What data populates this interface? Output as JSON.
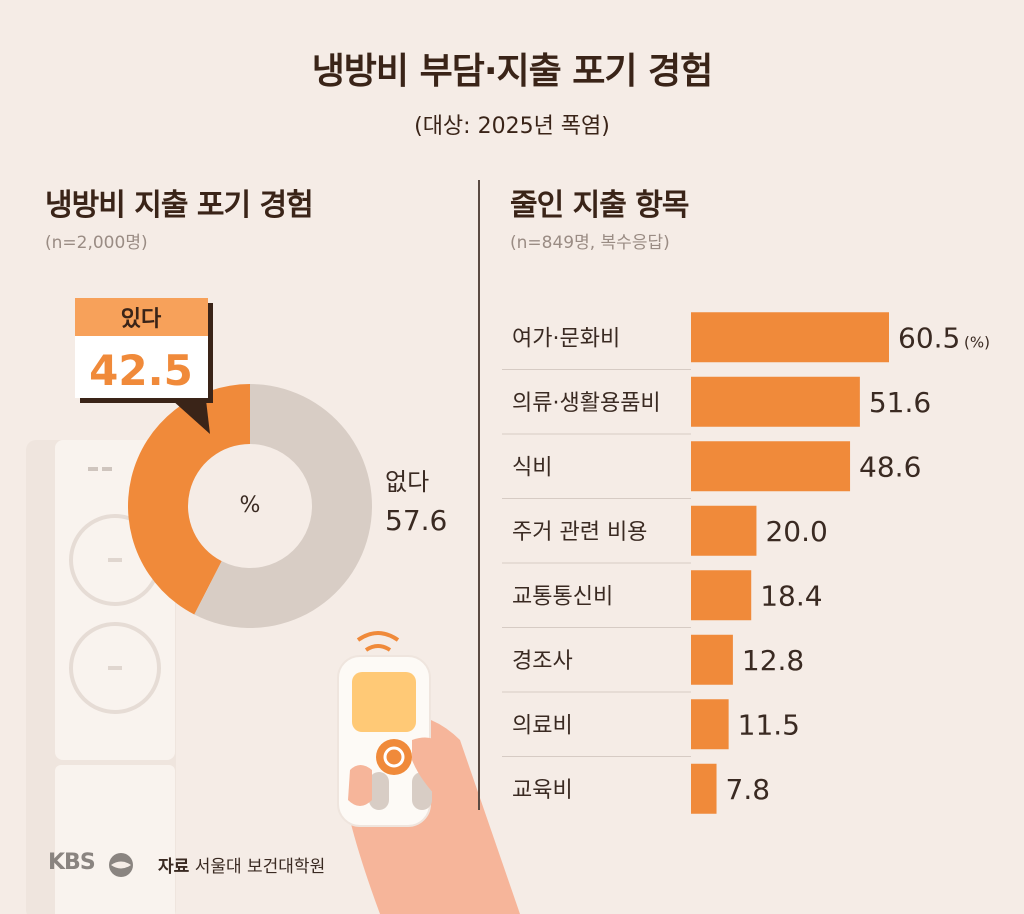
{
  "title": "냉방비 부담·지출 포기 경험",
  "subtitle": "(대상: 2025년 폭염)",
  "left": {
    "title": "냉방비 지출 포기 경험",
    "note": "(n=2,000명)"
  },
  "right": {
    "title": "줄인 지출 항목",
    "note": "(n=849명, 복수응답)"
  },
  "footer": {
    "logo": "KBS",
    "source_label": "자료",
    "source_name": "서울대 보건대학원"
  },
  "colors": {
    "accent": "#f08a3a",
    "grey": "#d8cdc5",
    "bg": "#f5ece6",
    "callout_head": "#f7a15a"
  },
  "chart_data": [
    {
      "type": "pie",
      "unit": "%",
      "slices": [
        {
          "label": "있다",
          "value": 42.5,
          "display": "42.5"
        },
        {
          "label": "없다",
          "value": 57.6,
          "display": "57.6"
        }
      ]
    },
    {
      "type": "bar",
      "orientation": "horizontal",
      "unit_label": "(%)",
      "categories": [
        "여가·문화비",
        "의류·생활용품비",
        "식비",
        "주거 관련 비용",
        "교통통신비",
        "경조사",
        "의료비",
        "교육비"
      ],
      "values": [
        60.5,
        51.6,
        48.6,
        20.0,
        18.4,
        12.8,
        11.5,
        7.8
      ],
      "labels": [
        "60.5",
        "51.6",
        "48.6",
        "20.0",
        "18.4",
        "12.8",
        "11.5",
        "7.8"
      ]
    }
  ]
}
